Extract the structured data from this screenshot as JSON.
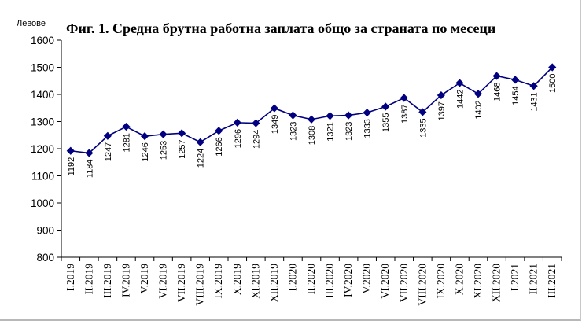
{
  "chart_data": {
    "type": "line",
    "title": "Фиг. 1. Средна брутна работна заплата общо за страната по месеци",
    "ylabel": "Левове",
    "xlabel": "",
    "ylim": [
      800,
      1600
    ],
    "yticks": [
      800,
      900,
      1000,
      1100,
      1200,
      1300,
      1400,
      1500,
      1600
    ],
    "grid": false,
    "legend": "none",
    "categories": [
      "I.2019",
      "II.2019",
      "III.2019",
      "IV.2019",
      "V.2019",
      "VI.2019",
      "VII.2019",
      "VIII.2019",
      "IX.2019",
      "X.2019",
      "XI.2019",
      "XII.2019",
      "I.2020",
      "II.2020",
      "III.2020",
      "IV.2020",
      "V.2020",
      "VI.2020",
      "VII.2020",
      "VIII.2020",
      "IX.2020",
      "X.2020",
      "XI.2020",
      "XII.2020",
      "I.2021",
      "II.2021",
      "III.2021"
    ],
    "series": [
      {
        "values": [
          1192,
          1184,
          1247,
          1281,
          1246,
          1253,
          1257,
          1224,
          1266,
          1296,
          1294,
          1349,
          1323,
          1308,
          1321,
          1323,
          1333,
          1355,
          1387,
          1335,
          1397,
          1442,
          1402,
          1468,
          1454,
          1431,
          1500
        ],
        "color": "#000080"
      }
    ]
  }
}
